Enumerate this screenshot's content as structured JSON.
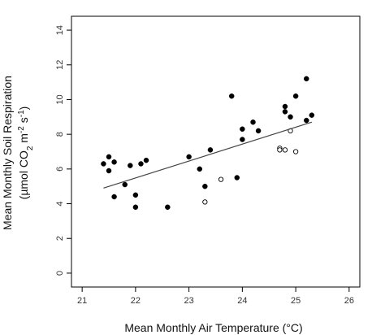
{
  "chart_data": {
    "type": "scatter",
    "title": "",
    "xlabel": "Mean Monthly Air Temperature (°C)",
    "ylabel_line1": "Mean Monthly Soil Respiration",
    "ylabel_line2_parts": [
      "(µmol CO",
      "2",
      " m",
      "-2",
      " s",
      "-1",
      ")"
    ],
    "xlim": [
      20.8,
      26.2
    ],
    "ylim": [
      -0.8,
      14.8
    ],
    "xticks": [
      21,
      22,
      23,
      24,
      25,
      26
    ],
    "yticks": [
      0,
      2,
      4,
      6,
      8,
      10,
      12,
      14
    ],
    "grid": false,
    "legend": "none",
    "series": [
      {
        "marker": "filled-circle",
        "color": "#000000",
        "points": [
          [
            21.4,
            6.3
          ],
          [
            21.5,
            6.7
          ],
          [
            21.5,
            5.9
          ],
          [
            21.6,
            6.4
          ],
          [
            21.6,
            4.4
          ],
          [
            21.8,
            5.1
          ],
          [
            21.9,
            6.2
          ],
          [
            22.0,
            4.5
          ],
          [
            22.0,
            3.8
          ],
          [
            22.1,
            6.3
          ],
          [
            22.2,
            6.5
          ],
          [
            22.6,
            3.8
          ],
          [
            23.0,
            6.7
          ],
          [
            23.2,
            6.0
          ],
          [
            23.3,
            5.0
          ],
          [
            23.4,
            7.1
          ],
          [
            23.8,
            10.2
          ],
          [
            23.9,
            5.5
          ],
          [
            24.0,
            8.3
          ],
          [
            24.0,
            7.7
          ],
          [
            24.2,
            8.7
          ],
          [
            24.3,
            8.2
          ],
          [
            24.8,
            9.6
          ],
          [
            24.8,
            9.3
          ],
          [
            24.9,
            9.0
          ],
          [
            25.0,
            10.2
          ],
          [
            25.2,
            11.2
          ],
          [
            25.2,
            8.8
          ],
          [
            25.3,
            9.1
          ]
        ]
      },
      {
        "marker": "open-circle",
        "color": "#000000",
        "points": [
          [
            23.3,
            4.1
          ],
          [
            23.6,
            5.4
          ],
          [
            24.7,
            7.2
          ],
          [
            24.7,
            7.1
          ],
          [
            24.8,
            7.1
          ],
          [
            24.9,
            8.2
          ],
          [
            25.0,
            7.0
          ]
        ]
      }
    ],
    "trend_line": {
      "x": [
        21.4,
        25.3
      ],
      "y": [
        4.9,
        8.7
      ],
      "color": "#444444"
    }
  }
}
